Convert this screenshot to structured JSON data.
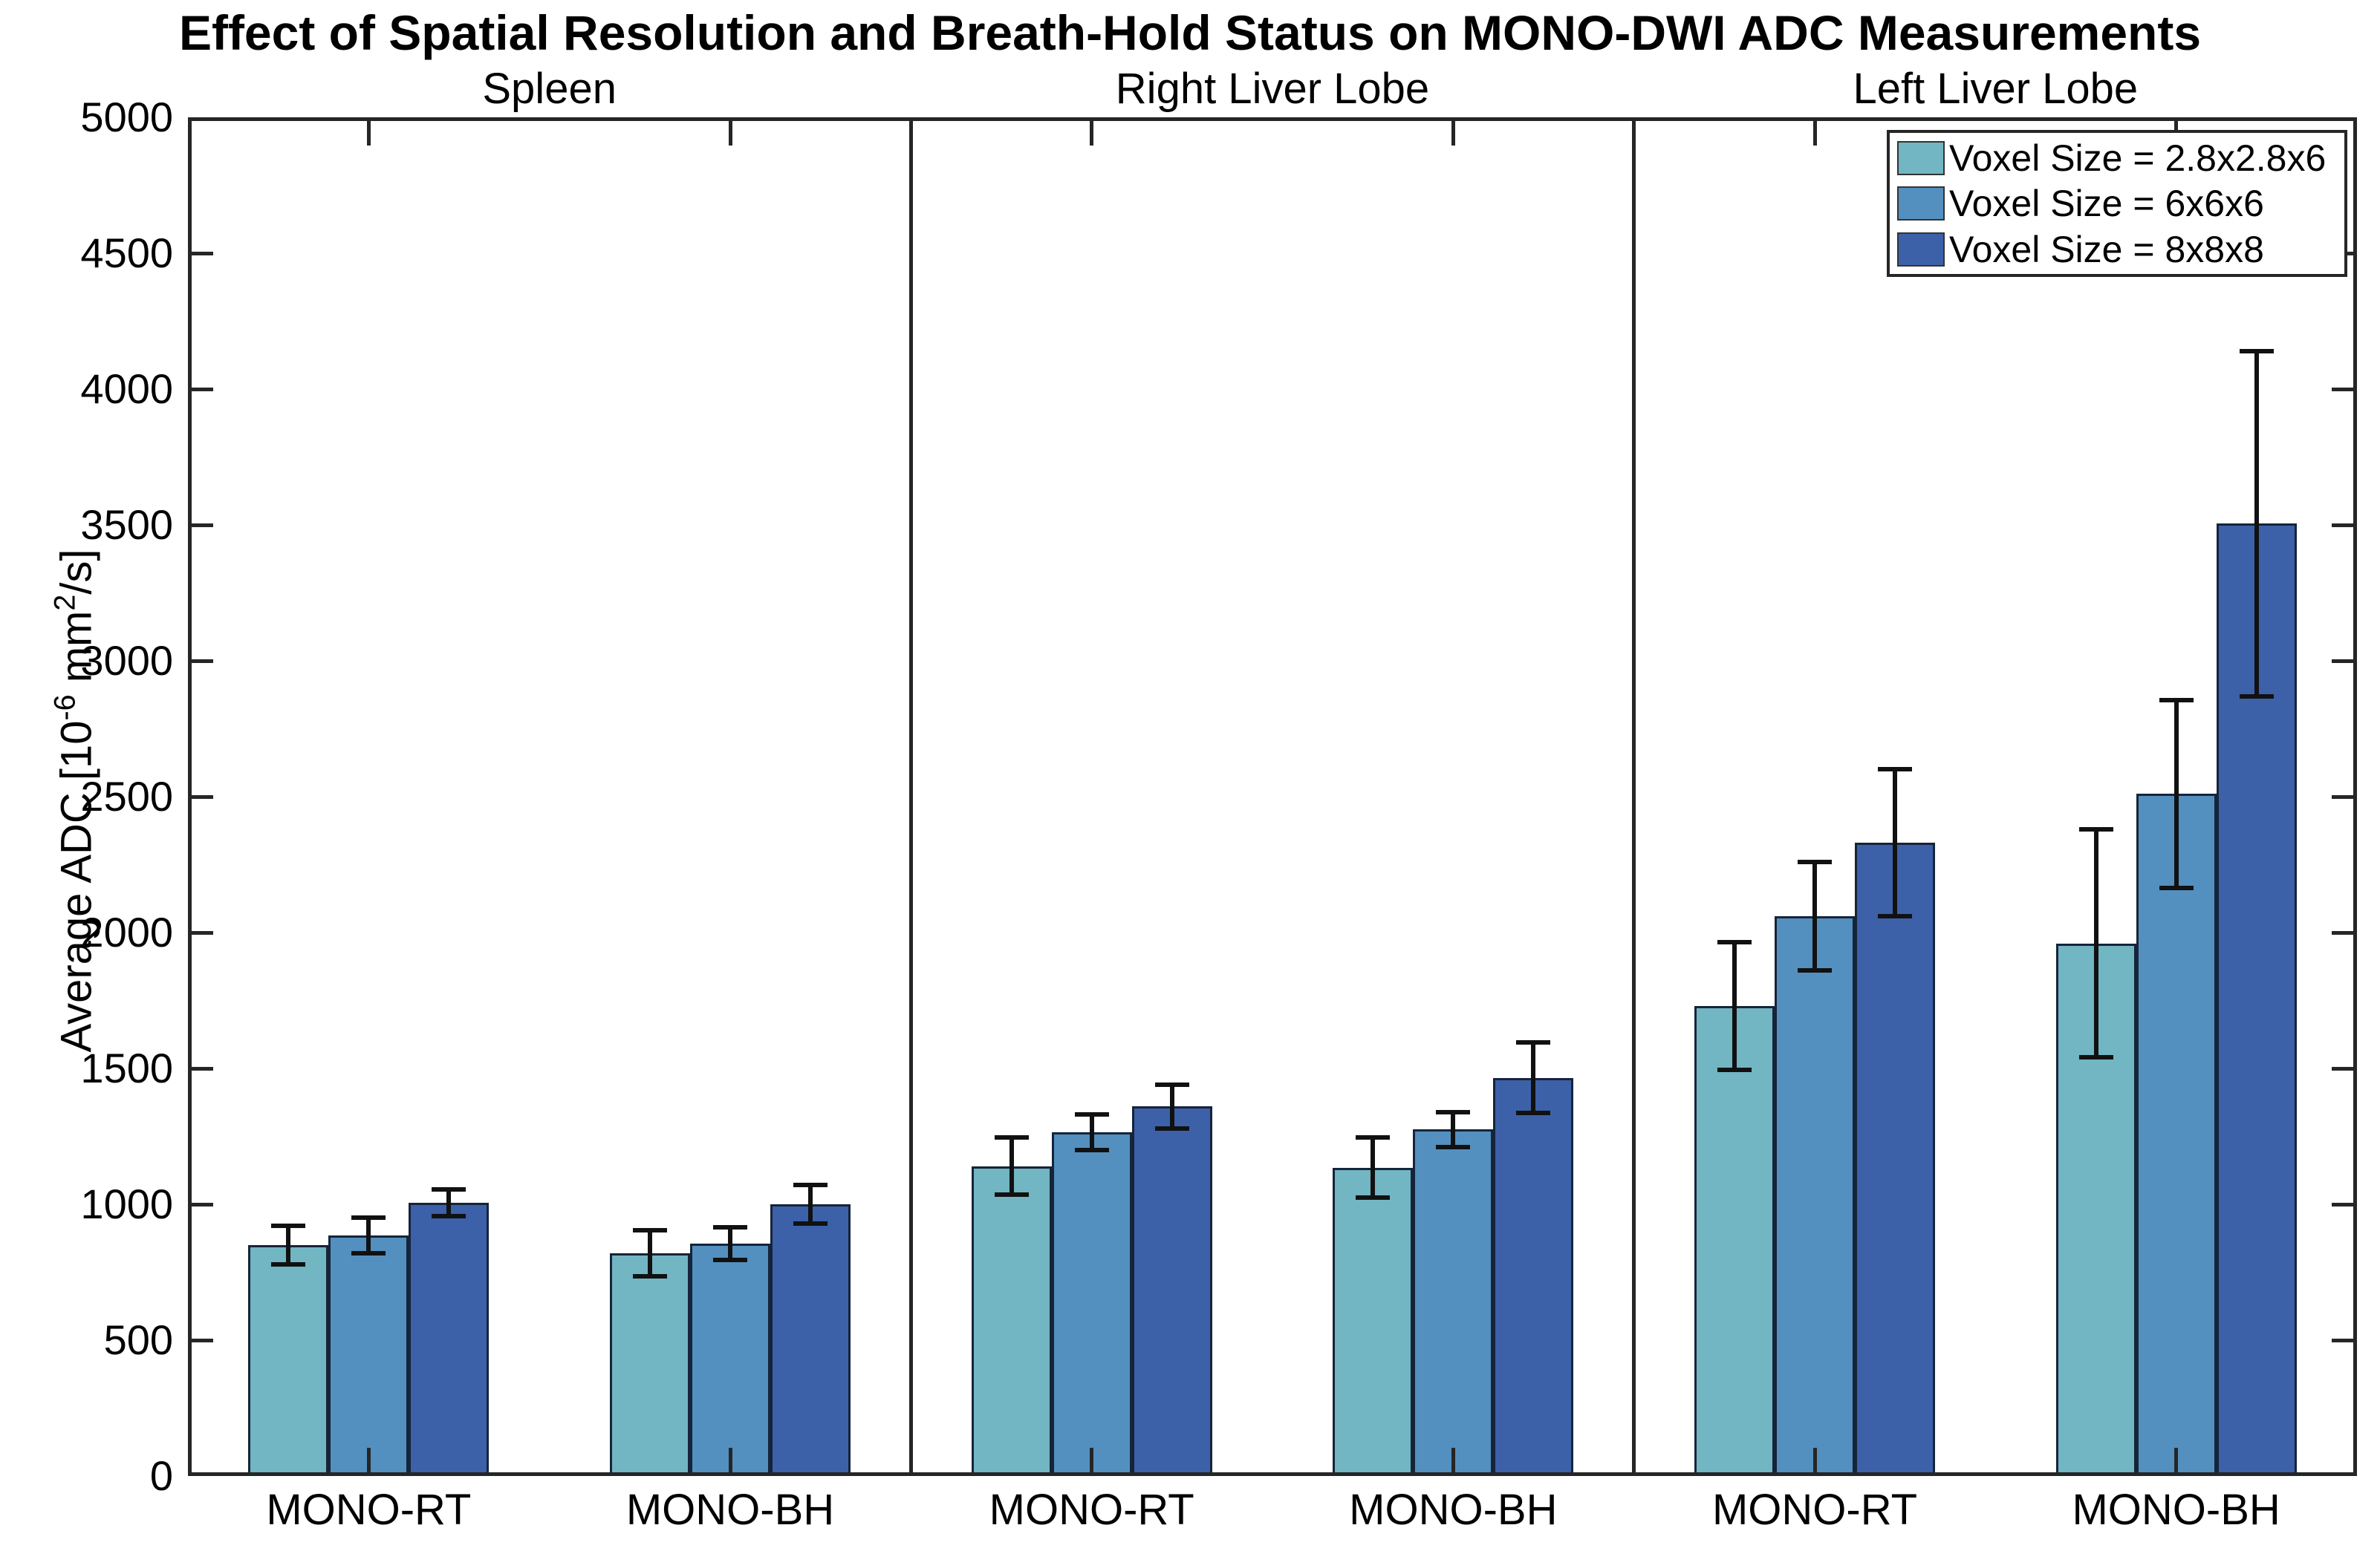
{
  "chart_data": {
    "type": "bar",
    "title": "Effect of Spatial Resolution and Breath-Hold Status on MONO-DWI ADC Measurements",
    "ylabel": "Average ADC [10^-6 mm^2/s]",
    "ylabel_parts": [
      {
        "t": "Average ADC [10"
      },
      {
        "t": "-6",
        "sup": true
      },
      {
        "t": " mm"
      },
      {
        "t": "2",
        "sup": true
      },
      {
        "t": "/s]"
      }
    ],
    "ylim": [
      0,
      5000
    ],
    "ytick_step": 500,
    "grid": false,
    "legend_position": "top-right",
    "series": [
      {
        "name": "Voxel Size = 2.8x2.8x6",
        "color": "#72b5c3"
      },
      {
        "name": "Voxel Size = 6x6x6",
        "color": "#5390bf"
      },
      {
        "name": "Voxel Size = 8x8x8",
        "color": "#3c61a9"
      }
    ],
    "panels": [
      {
        "title": "Spleen",
        "groups": [
          {
            "label": "MONO-RT",
            "values": [
              850,
              885,
              1005
            ],
            "errors": [
              70,
              65,
              50
            ]
          },
          {
            "label": "MONO-BH",
            "values": [
              820,
              855,
              1000
            ],
            "errors": [
              85,
              60,
              70
            ]
          }
        ]
      },
      {
        "title": "Right Liver Lobe",
        "groups": [
          {
            "label": "MONO-RT",
            "values": [
              1140,
              1265,
              1360
            ],
            "errors": [
              105,
              65,
              80
            ]
          },
          {
            "label": "MONO-BH",
            "values": [
              1135,
              1275,
              1465
            ],
            "errors": [
              110,
              65,
              130
            ]
          }
        ]
      },
      {
        "title": "Left Liver Lobe",
        "groups": [
          {
            "label": "MONO-RT",
            "values": [
              1730,
              2060,
              2330
            ],
            "errors": [
              235,
              200,
              270
            ]
          },
          {
            "label": "MONO-BH",
            "values": [
              1960,
              2510,
              3505
            ],
            "errors": [
              420,
              345,
              635
            ]
          }
        ]
      }
    ]
  }
}
